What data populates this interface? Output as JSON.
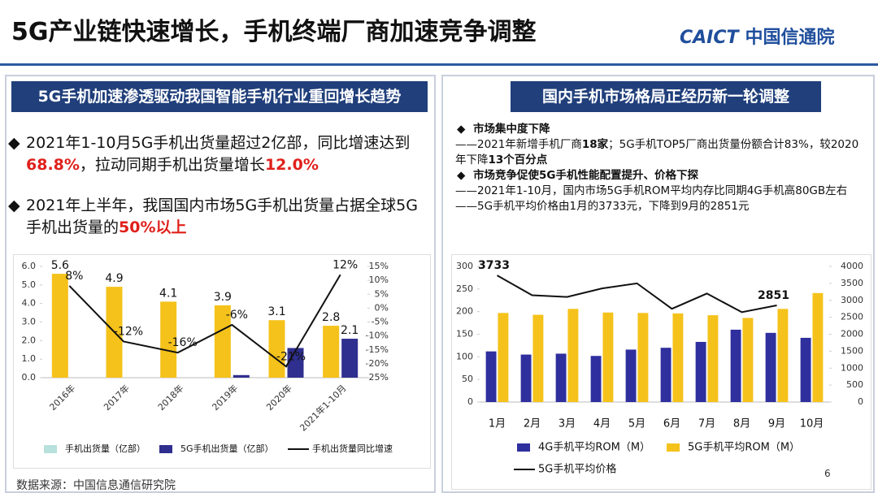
{
  "header": {
    "title": "5G产业链快速增长，手机终端厂商加速竞争调整",
    "logo": [
      "CAICT",
      "中国信通院"
    ]
  },
  "left_panel": {
    "heading": "5G手机加速渗透驱动我国智能手机行业重回增长趋势",
    "bullets": [
      [
        "2021年1-10月5G手机出货量超过2亿部，同比增速达到",
        "68.8%",
        "，拉动同期手机出货量增长",
        "12.0%"
      ],
      [
        "2021年上半年，我国国内市场5G手机出货量占据全球5G手机出货量的",
        "50%以上"
      ]
    ],
    "source": "数据来源：中国信息通信研究院"
  },
  "right_panel": {
    "heading": "国内手机市场格局正经历新一轮调整",
    "sections": [
      {
        "heading": "市场集中度下降",
        "lines": [
          [
            "——2021年新增手机厂商",
            "18家",
            "；5G手机TOP5厂商出货量份额合计83%，较2020年下降",
            "13个百分点"
          ]
        ]
      },
      {
        "heading": "市场竞争促使5G手机性能配置提升、价格下探",
        "lines": [
          [
            "——2021年1-10月，国内市场5G手机ROM平均内存比同期4G手机高80GB左右"
          ],
          [
            "——5G手机平均价格由1月的3733元，下降到9月的2851元"
          ]
        ]
      }
    ]
  },
  "page_number": "6",
  "chart_data": [
    {
      "type": "bar",
      "categories": [
        "2016年",
        "2017年",
        "2018年",
        "2019年",
        "2020年",
        "2021年1-10月"
      ],
      "series": [
        {
          "name": "手机出货量（亿部）",
          "color": "#f5c21b",
          "legend_color": "#b8e0dc",
          "values": [
            5.6,
            4.9,
            4.1,
            3.9,
            3.1,
            2.8
          ],
          "show_values": true
        },
        {
          "name": "5G手机出货量（亿部）",
          "color": "#2f2f8f",
          "values": [
            0,
            0,
            0,
            0.14,
            1.6,
            2.1
          ],
          "value_labels": [
            null,
            null,
            null,
            null,
            null,
            "2.1"
          ]
        },
        {
          "name": "手机出货量同比增速",
          "color": "#111111",
          "axis": "y2",
          "values": [
            8,
            -12,
            -16,
            -6,
            -21,
            12
          ],
          "value_labels": [
            "8%",
            "-12%",
            "-16%",
            "-6%",
            "-21%",
            "12%"
          ]
        }
      ],
      "ylim": [
        0,
        6
      ],
      "yticks": [
        {
          "value": 0,
          "label": "0.0"
        },
        {
          "value": 1,
          "label": "1.0"
        },
        {
          "value": 2,
          "label": "2.0"
        },
        {
          "value": 3,
          "label": "3.0"
        },
        {
          "value": 4,
          "label": "4.0"
        },
        {
          "value": 5,
          "label": "5.0"
        },
        {
          "value": 6,
          "label": "6.0"
        }
      ],
      "y2lim": [
        -25,
        15
      ],
      "y2ticks": [
        {
          "value": -25,
          "label": "-25%"
        },
        {
          "value": -20,
          "label": "-20%"
        },
        {
          "value": -15,
          "label": "-15%"
        },
        {
          "value": -10,
          "label": "-10%"
        },
        {
          "value": -5,
          "label": "-5%"
        },
        {
          "value": 0,
          "label": "0%"
        },
        {
          "value": 5,
          "label": "5%"
        },
        {
          "value": 10,
          "label": "10%"
        },
        {
          "value": 15,
          "label": "15%"
        }
      ]
    },
    {
      "type": "bar",
      "categories": [
        "1月",
        "2月",
        "3月",
        "4月",
        "5月",
        "6月",
        "7月",
        "8月",
        "9月",
        "10月"
      ],
      "series": [
        {
          "name": "4G手机平均ROM（M）",
          "color": "#2f2f9e",
          "values": [
            112,
            105,
            107,
            102,
            116,
            120,
            133,
            160,
            153,
            142
          ]
        },
        {
          "name": "5G手机平均ROM（M）",
          "color": "#f5c21b",
          "values": [
            197,
            193,
            206,
            198,
            197,
            196,
            192,
            186,
            206,
            241
          ]
        },
        {
          "name": "5G手机平均价格",
          "color": "#111111",
          "axis": "y2",
          "values": [
            3733,
            3150,
            3100,
            3350,
            3500,
            2750,
            3200,
            2650,
            2851,
            null
          ],
          "value_labels": [
            "3733",
            null,
            null,
            null,
            null,
            null,
            null,
            null,
            "2851",
            null
          ]
        }
      ],
      "ylim": [
        0,
        300
      ],
      "yticks": [
        0,
        50,
        100,
        150,
        200,
        250,
        300
      ],
      "y2lim": [
        0,
        4000
      ],
      "y2ticks": [
        0,
        500,
        1000,
        1500,
        2000,
        2500,
        3000,
        3500,
        4000
      ]
    }
  ]
}
